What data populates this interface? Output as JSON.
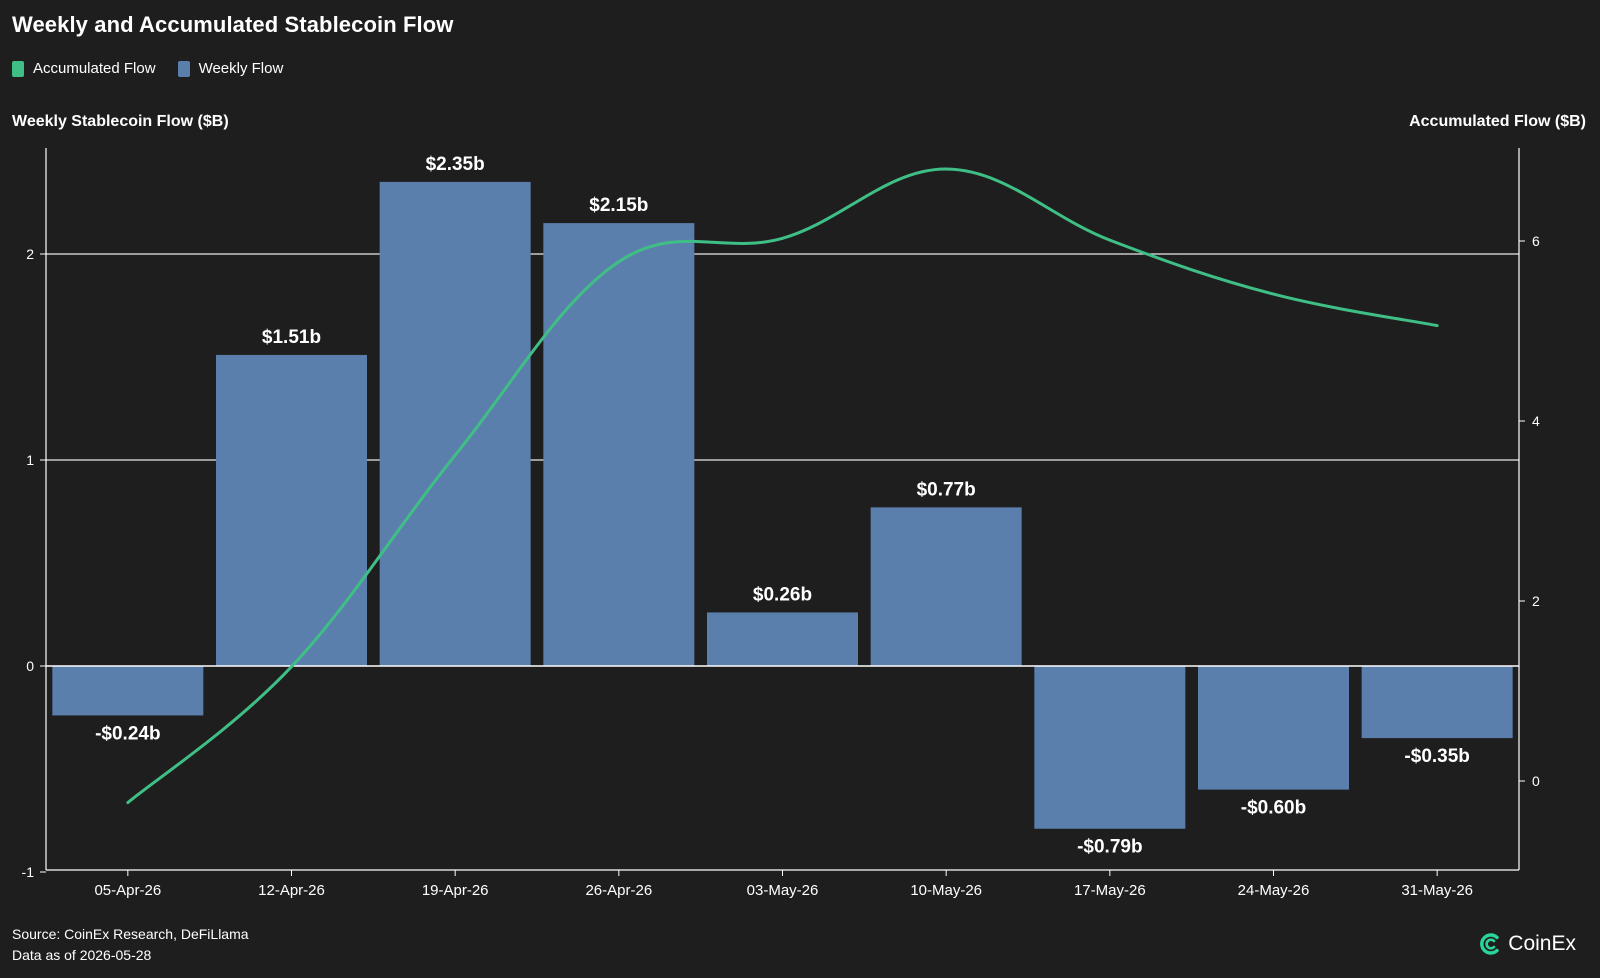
{
  "colors": {
    "background": "#1e1e1e",
    "bar": "#5b7fad",
    "line": "#3fbf85",
    "text": "#ffffff",
    "grid": "#ffffff",
    "logo_accent": "#2bd49a"
  },
  "chart_data": {
    "type": "bar",
    "title": "Weekly and Accumulated Stablecoin Flow",
    "legend": [
      {
        "name": "Accumulated Flow",
        "color": "#3fbf85"
      },
      {
        "name": "Weekly Flow",
        "color": "#5b7fad"
      }
    ],
    "legend_placement": "top-left",
    "ylabel_left": "Weekly Stablecoin Flow ($B)",
    "ylabel_right": "Accumulated Flow ($B)",
    "categories": [
      "05-Apr-26",
      "12-Apr-26",
      "19-Apr-26",
      "26-Apr-26",
      "03-May-26",
      "10-May-26",
      "17-May-26",
      "24-May-26",
      "31-May-26"
    ],
    "series": [
      {
        "name": "Weekly Flow",
        "type": "bar",
        "axis": "left",
        "values": [
          -0.24,
          1.51,
          2.35,
          2.15,
          0.26,
          0.77,
          -0.79,
          -0.6,
          -0.35
        ],
        "labels": [
          "-$0.24b",
          "$1.51b",
          "$2.35b",
          "$2.15b",
          "$0.26b",
          "$0.77b",
          "-$0.79b",
          "-$0.60b",
          "-$0.35b"
        ]
      },
      {
        "name": "Accumulated Flow",
        "type": "line",
        "axis": "right",
        "values": [
          -0.24,
          1.27,
          3.62,
          5.77,
          6.03,
          6.8,
          6.01,
          5.41,
          5.06
        ]
      }
    ],
    "ylim_left": [
      -1,
      2.5
    ],
    "yticks_left": [
      -1,
      0,
      1,
      2
    ],
    "ylim_right": [
      -1,
      7
    ],
    "yticks_right": [
      0,
      2,
      4,
      6
    ],
    "grid": true
  },
  "footer": {
    "source": "Source: CoinEx Research, DeFiLlama",
    "date": "Data as of 2026-05-28"
  },
  "logo": {
    "text": "CoinEx",
    "icon": "coinex-logo-icon"
  }
}
